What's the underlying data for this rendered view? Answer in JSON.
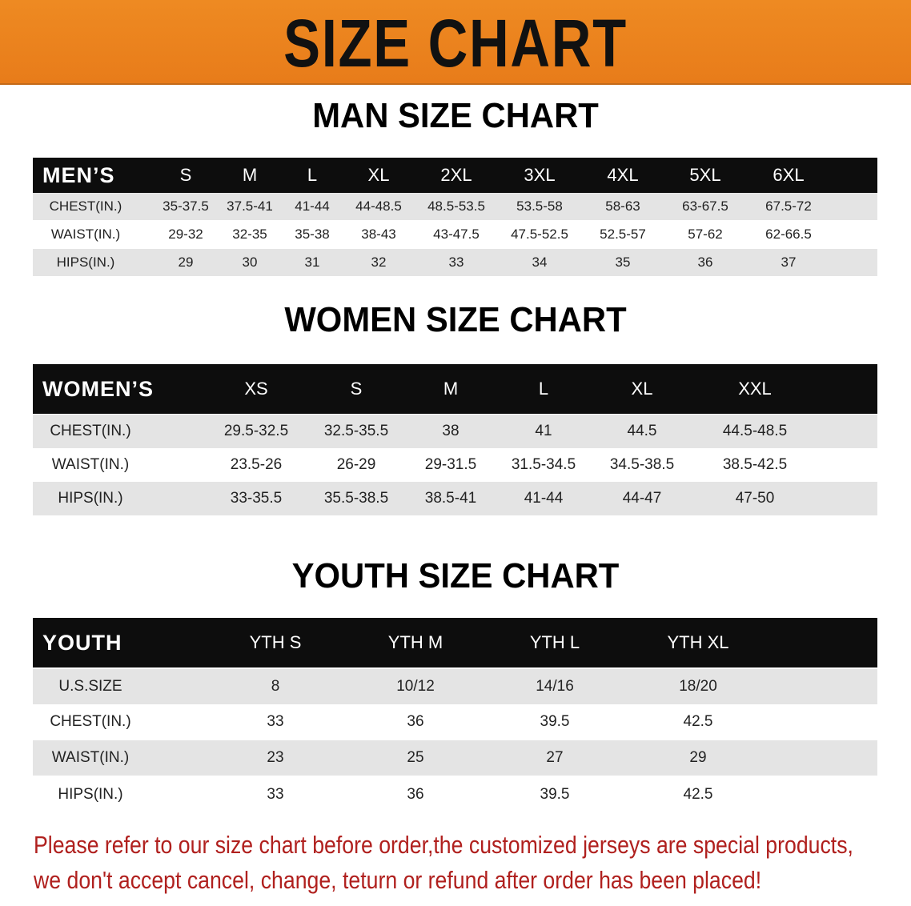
{
  "banner": {
    "title": "SIZE CHART",
    "color": "#e9801c"
  },
  "men": {
    "title": "MAN SIZE CHART",
    "corner": "MEN’S",
    "sizes": [
      "S",
      "M",
      "L",
      "XL",
      "2XL",
      "3XL",
      "4XL",
      "5XL",
      "6XL"
    ],
    "rows": [
      {
        "label": "CHEST(IN.)",
        "values": [
          "35-37.5",
          "37.5-41",
          "41-44",
          "44-48.5",
          "48.5-53.5",
          "53.5-58",
          "58-63",
          "63-67.5",
          "67.5-72"
        ]
      },
      {
        "label": "WAIST(IN.)",
        "values": [
          "29-32",
          "32-35",
          "35-38",
          "38-43",
          "43-47.5",
          "47.5-52.5",
          "52.5-57",
          "57-62",
          "62-66.5"
        ]
      },
      {
        "label": "HIPS(IN.)",
        "values": [
          "29",
          "30",
          "31",
          "32",
          "33",
          "34",
          "35",
          "36",
          "37"
        ]
      }
    ]
  },
  "women": {
    "title": "WOMEN SIZE CHART",
    "corner": "WOMEN’S",
    "sizes": [
      "XS",
      "S",
      "M",
      "L",
      "XL",
      "XXL"
    ],
    "rows": [
      {
        "label": "CHEST(IN.)",
        "values": [
          "29.5-32.5",
          "32.5-35.5",
          "38",
          "41",
          "44.5",
          "44.5-48.5"
        ]
      },
      {
        "label": "WAIST(IN.)",
        "values": [
          "23.5-26",
          "26-29",
          "29-31.5",
          "31.5-34.5",
          "34.5-38.5",
          "38.5-42.5"
        ]
      },
      {
        "label": "HIPS(IN.)",
        "values": [
          "33-35.5",
          "35.5-38.5",
          "38.5-41",
          "41-44",
          "44-47",
          "47-50"
        ]
      }
    ]
  },
  "youth": {
    "title": "YOUTH SIZE CHART",
    "corner": "YOUTH",
    "sizes": [
      "YTH S",
      "YTH M",
      "YTH L",
      "YTH XL"
    ],
    "rows": [
      {
        "label": "U.S.SIZE",
        "values": [
          "8",
          "10/12",
          "14/16",
          "18/20"
        ]
      },
      {
        "label": "CHEST(IN.)",
        "values": [
          "33",
          "36",
          "39.5",
          "42.5"
        ]
      },
      {
        "label": "WAIST(IN.)",
        "values": [
          "23",
          "25",
          "27",
          "29"
        ]
      },
      {
        "label": "HIPS(IN.)",
        "values": [
          "33",
          "36",
          "39.5",
          "42.5"
        ]
      }
    ]
  },
  "notice": {
    "line1": "Please refer to our size chart before order,the customized jerseys are special products,",
    "line2": "we don't accept cancel, change, teturn or refund after order has been placed!",
    "color": "#b0201e"
  }
}
